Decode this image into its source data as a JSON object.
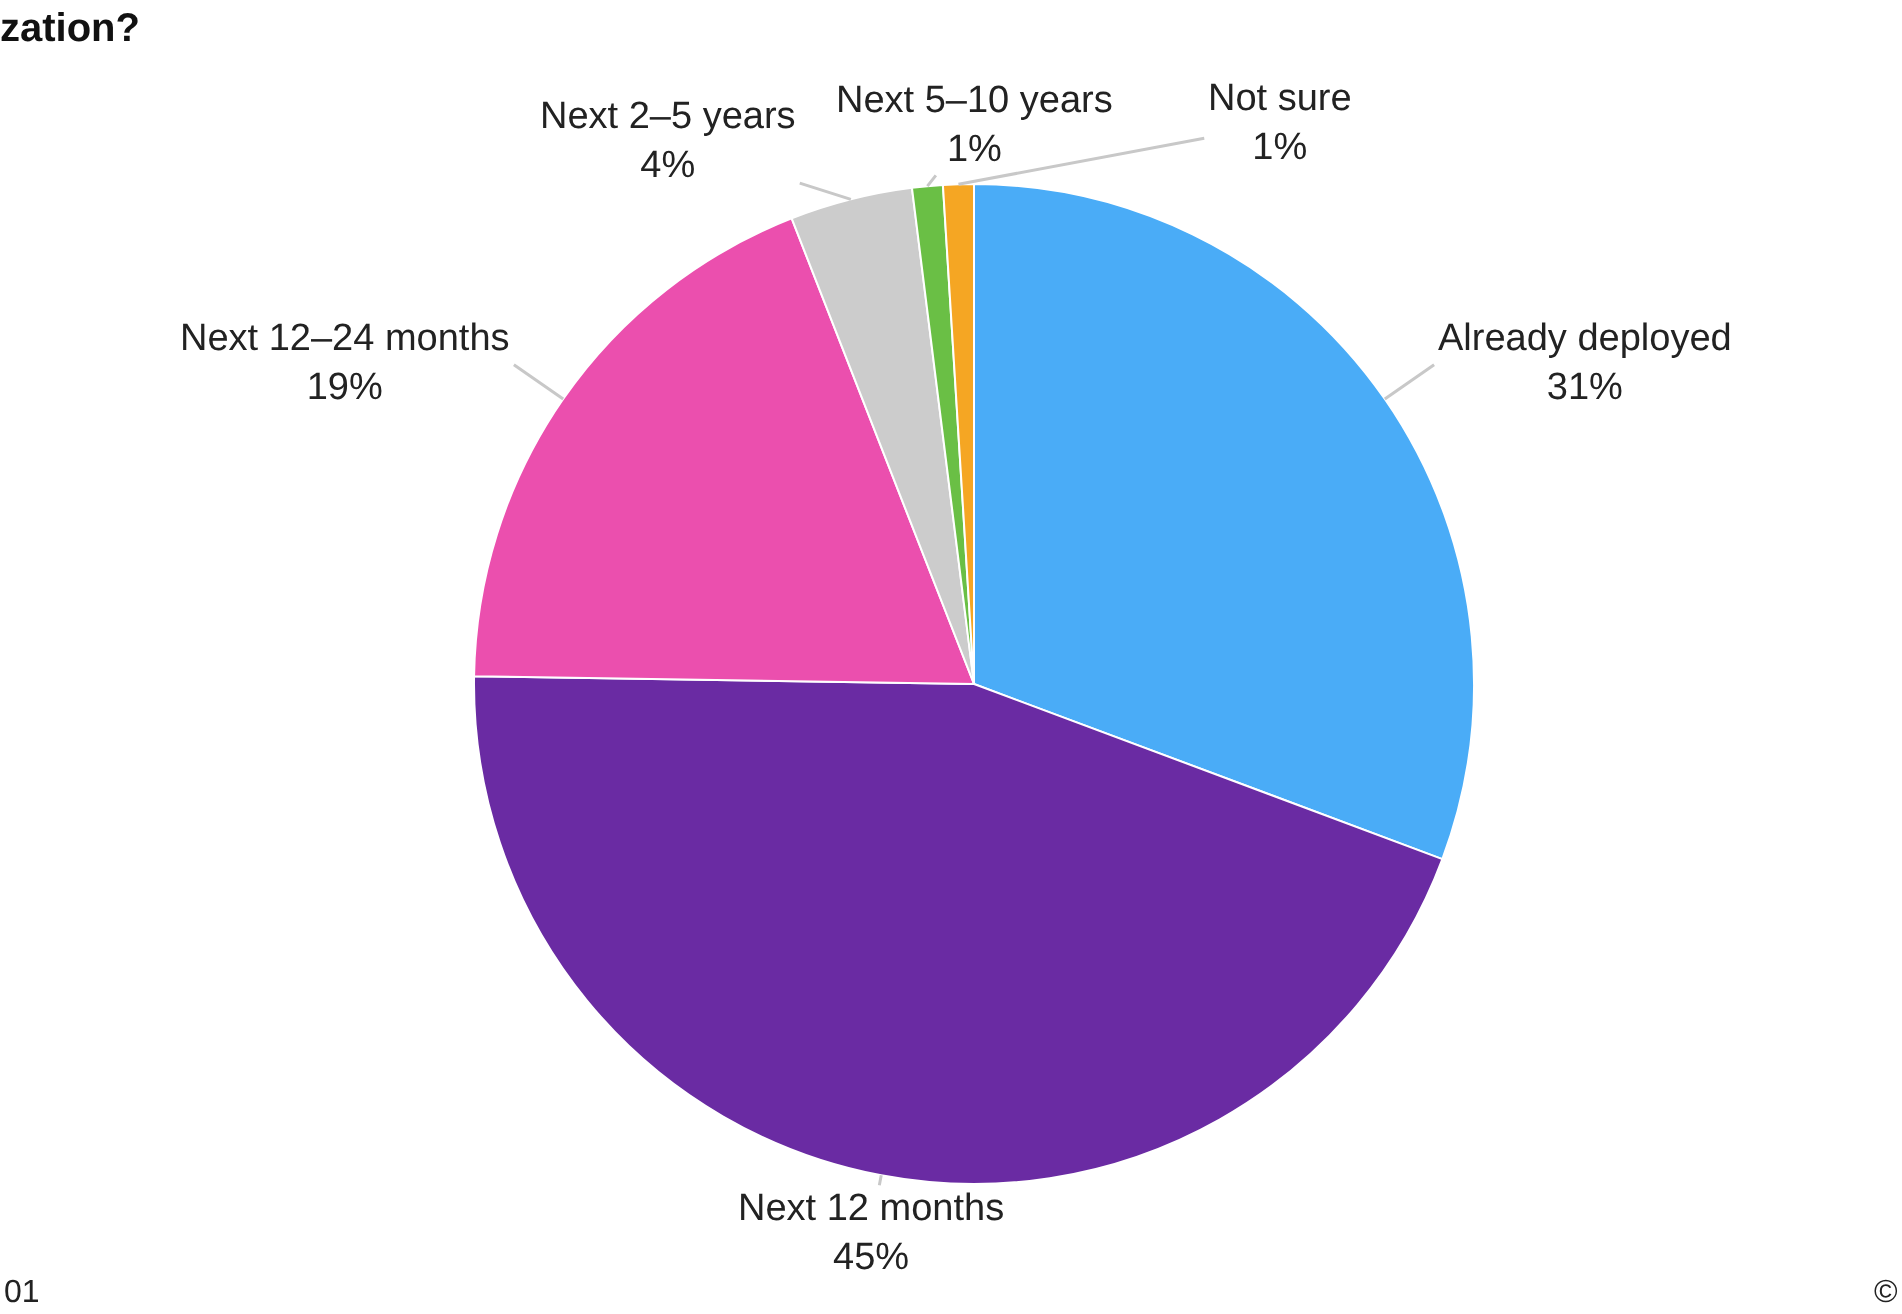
{
  "chart_data": {
    "type": "pie",
    "title": "zation?",
    "categories": [
      "Already deployed",
      "Next 12 months",
      "Next 12–24 months",
      "Next 2–5 years",
      "Next 5–10 years",
      "Not sure"
    ],
    "values": [
      31,
      45,
      19,
      4,
      1,
      1
    ],
    "value_labels": [
      "31%",
      "45%",
      "19%",
      "4%",
      "1%",
      "1%"
    ],
    "colors": [
      "#4aacf7",
      "#6a2ba3",
      "#eb4fae",
      "#cccccc",
      "#6abf45",
      "#f5a623"
    ],
    "annotations": [
      "01",
      "©"
    ]
  }
}
